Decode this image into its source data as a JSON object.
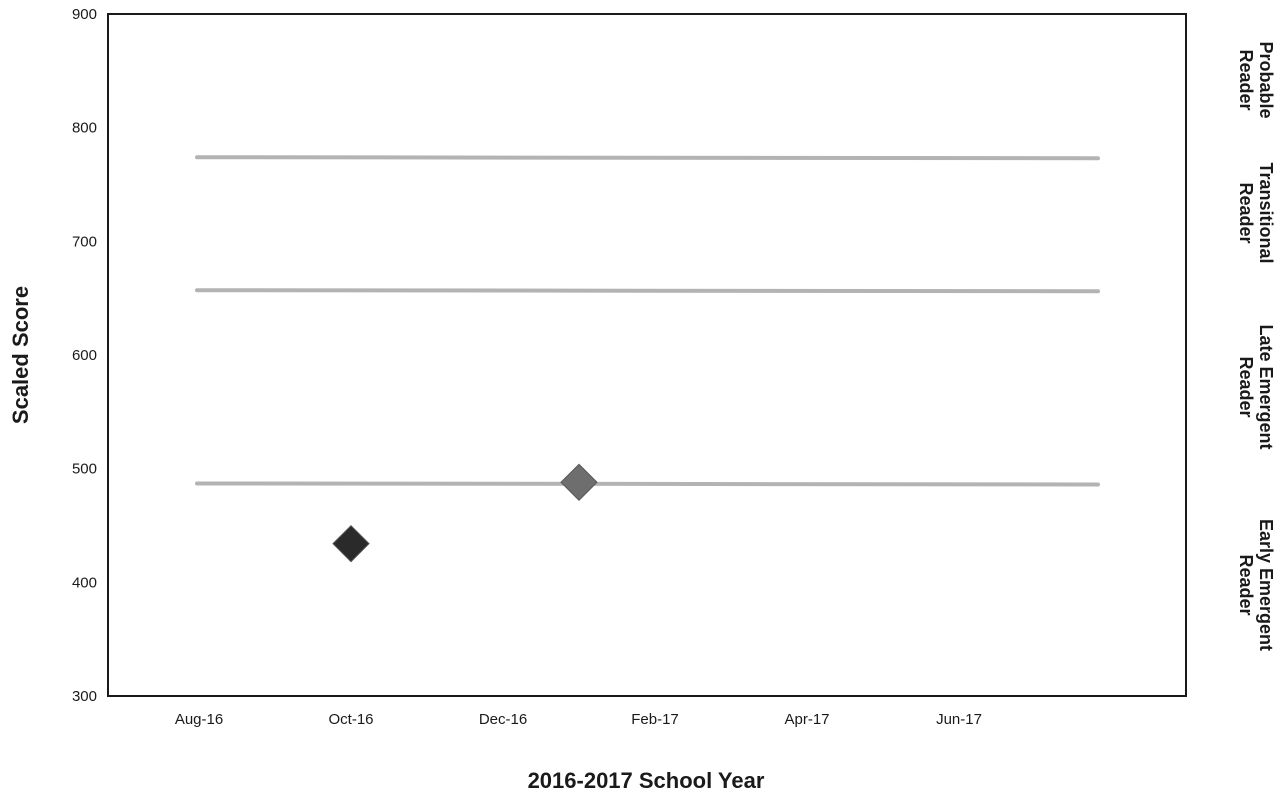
{
  "chart_data": {
    "type": "scatter",
    "title": "",
    "xlabel": "2016-2017 School Year",
    "ylabel": "Scaled Score",
    "ylim": [
      300,
      900
    ],
    "y_ticks": [
      300,
      400,
      500,
      600,
      700,
      800,
      900
    ],
    "x_tick_labels": [
      "Aug-16",
      "Oct-16",
      "Dec-16",
      "Feb-17",
      "Apr-17",
      "Jun-17"
    ],
    "grid": false,
    "thresholds": [
      {
        "value": 487,
        "color": "#b3b3b3"
      },
      {
        "value": 657,
        "color": "#b3b3b3"
      },
      {
        "value": 774,
        "color": "#b3b3b3"
      }
    ],
    "zones": [
      {
        "lines": [
          "Probable",
          "Reader"
        ]
      },
      {
        "lines": [
          "Transitional",
          "Reader"
        ]
      },
      {
        "lines": [
          "Late Emergent",
          "Reader"
        ]
      },
      {
        "lines": [
          "Early Emergent",
          "Reader"
        ]
      }
    ],
    "series": [
      {
        "points": [
          {
            "x": "Oct-16",
            "y": 434,
            "color": "#2a2a2a"
          },
          {
            "x": "Jan-17",
            "y": 488,
            "color": "#6e6e6e"
          }
        ]
      }
    ]
  }
}
